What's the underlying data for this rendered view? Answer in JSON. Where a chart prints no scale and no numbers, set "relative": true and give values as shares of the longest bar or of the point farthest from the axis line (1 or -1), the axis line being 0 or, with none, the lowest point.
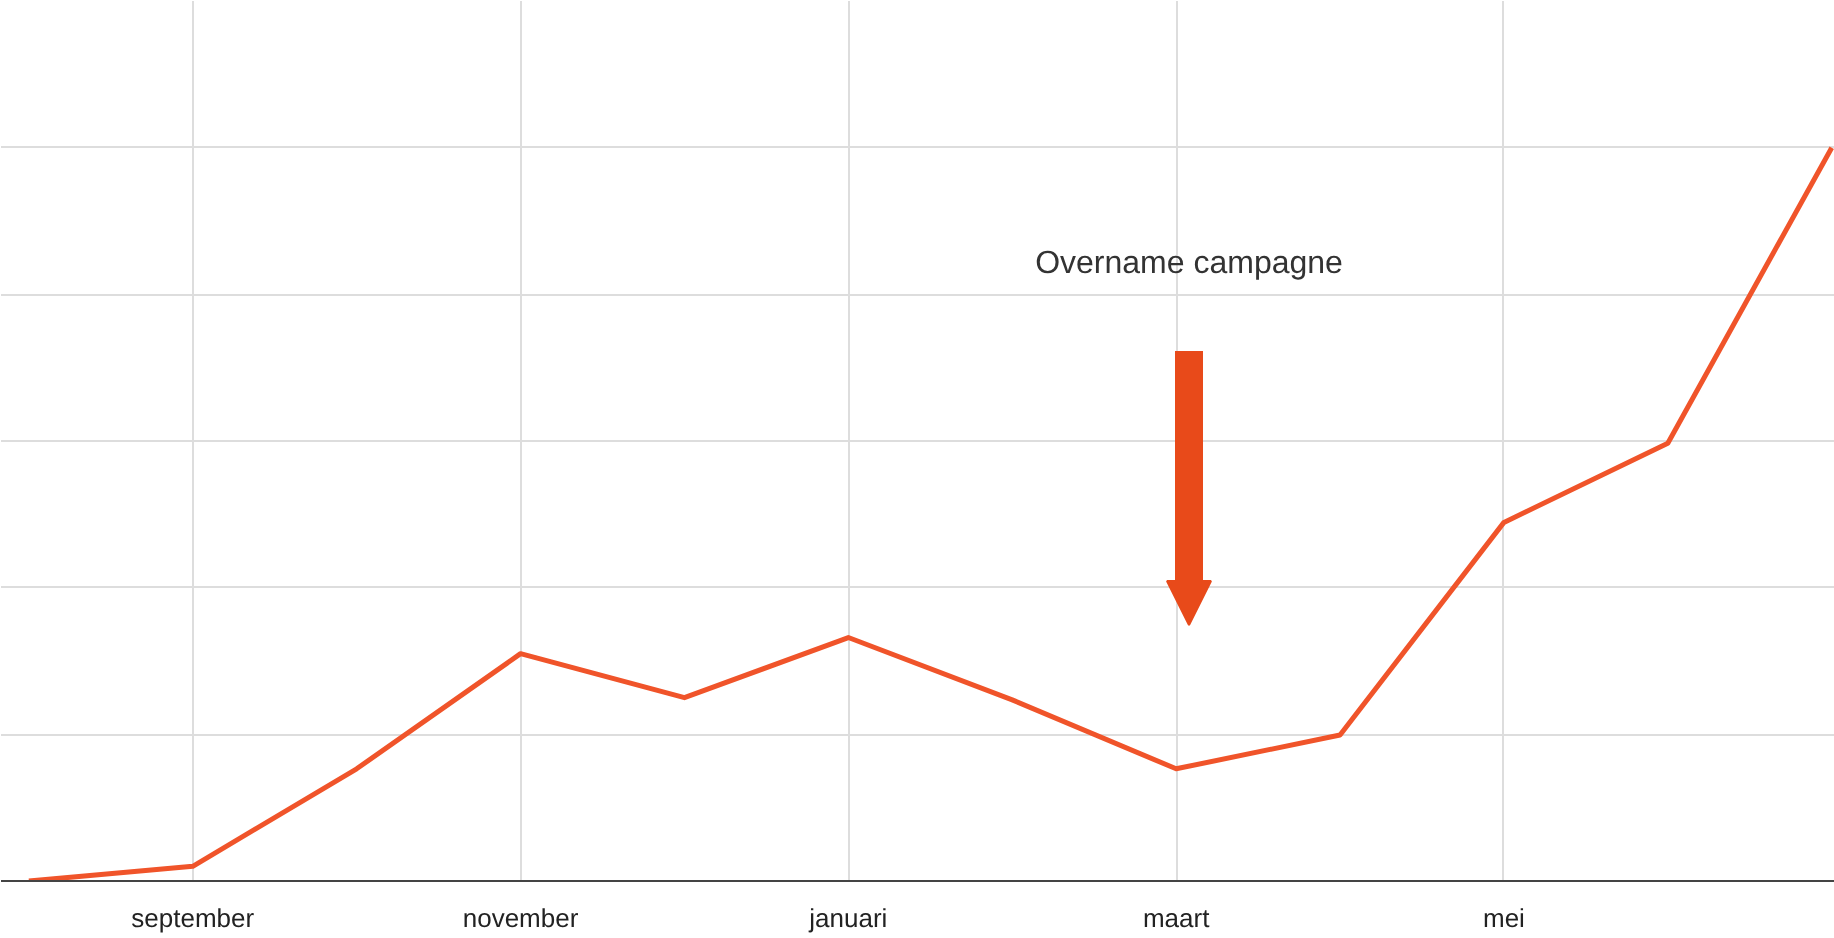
{
  "chart_data": {
    "type": "line",
    "relative": true,
    "grid": true,
    "categories": [
      null,
      "september",
      null,
      "november",
      null,
      "januari",
      null,
      "maart",
      null,
      "mei",
      null,
      null
    ],
    "series": [
      {
        "color": "#f0542a",
        "values": [
          0,
          0.02,
          0.153,
          0.31,
          0.25,
          0.332,
          0.247,
          0.153,
          0.199,
          0.489,
          0.597,
          1
        ]
      }
    ],
    "annotations": [
      "Overname campagne"
    ]
  }
}
